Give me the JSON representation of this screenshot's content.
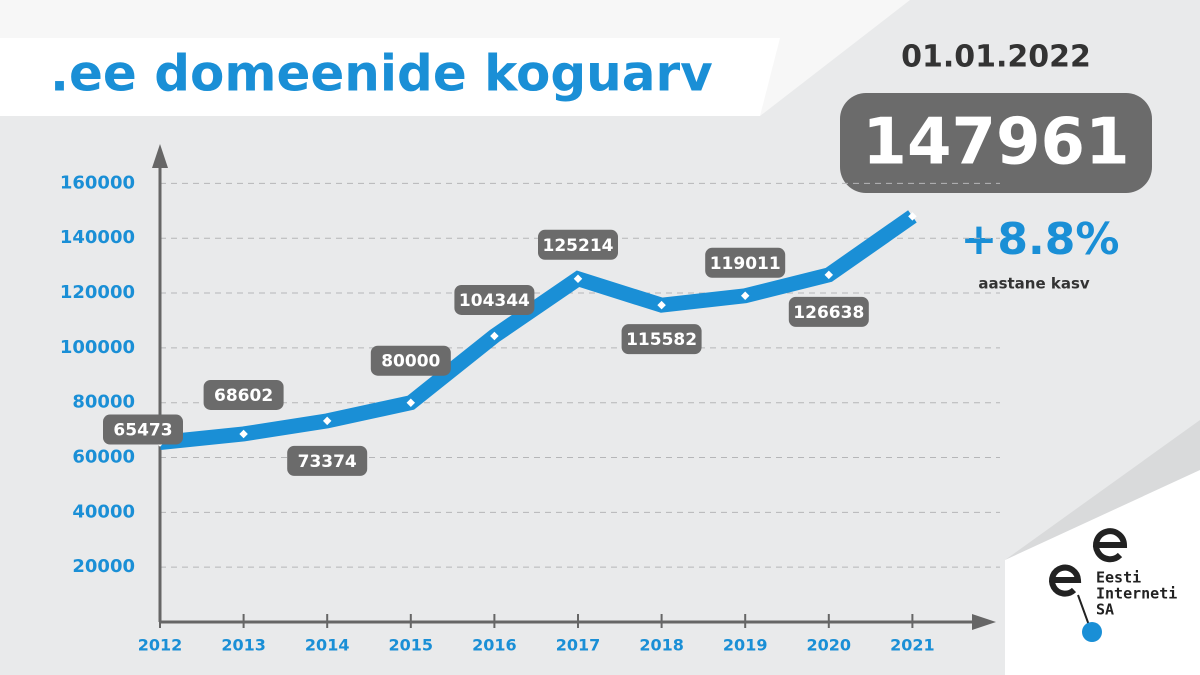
{
  "title": ".ee domeenide koguarv",
  "date": "01.01.2022",
  "growth": "+8.8%",
  "growth_label": "aastane kasv",
  "logo": {
    "lines": [
      "Eesti",
      "Interneti",
      "SA"
    ]
  },
  "chart_data": {
    "type": "line",
    "categories": [
      "2012",
      "2013",
      "2014",
      "2015",
      "2016",
      "2017",
      "2018",
      "2019",
      "2020",
      "2021"
    ],
    "values": [
      65473,
      68602,
      73374,
      80000,
      104344,
      125214,
      115582,
      119011,
      126638,
      147961
    ],
    "color": "#1a8fd6",
    "ylim": [
      0,
      170000
    ],
    "yticks": [
      20000,
      40000,
      60000,
      80000,
      100000,
      120000,
      140000,
      160000
    ],
    "grid": true
  }
}
